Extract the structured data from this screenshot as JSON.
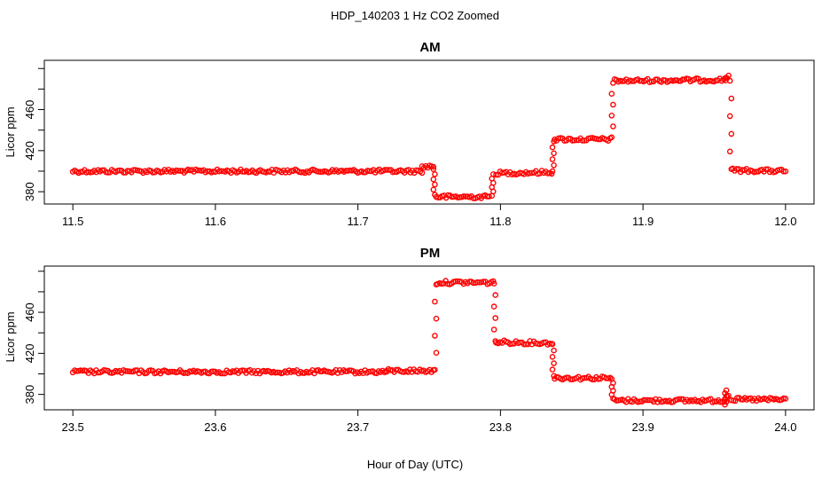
{
  "figure": {
    "title": "HDP_140203  1 Hz CO2 Zoomed",
    "xlabel": "Hour of Day (UTC)"
  },
  "chart_data": [
    {
      "type": "scatter",
      "title": "AM",
      "ylabel": "Licor ppm",
      "xlim": [
        11.48,
        12.02
      ],
      "ylim": [
        368,
        508
      ],
      "xticks": [
        "11.5",
        "11.6",
        "11.7",
        "11.8",
        "11.9",
        "12.0"
      ],
      "yticks": [
        "380",
        "420",
        "460"
      ],
      "marker_color": "#ff0000",
      "segments": [
        {
          "x": [
            11.5,
            11.745
          ],
          "y": [
            400,
            400
          ]
        },
        {
          "x": [
            11.745,
            11.753
          ],
          "y": [
            404,
            405
          ]
        },
        {
          "x": [
            11.755,
            11.792
          ],
          "y": [
            375,
            375
          ]
        },
        {
          "x": [
            11.797,
            11.836
          ],
          "y": [
            398,
            399
          ]
        },
        {
          "x": [
            11.838,
            11.877
          ],
          "y": [
            431,
            431
          ]
        },
        {
          "x": [
            11.88,
            11.958
          ],
          "y": [
            488,
            489
          ]
        },
        {
          "x": [
            11.958,
            11.96
          ],
          "y": [
            491,
            493
          ]
        },
        {
          "x": [
            11.963,
            12.0
          ],
          "y": [
            401,
            400
          ]
        }
      ],
      "transitions": [
        {
          "x": 11.7535,
          "y": [
            402,
            377
          ]
        },
        {
          "x": 11.7945,
          "y": [
            376,
            397
          ]
        },
        {
          "x": 11.837,
          "y": [
            400,
            429
          ]
        },
        {
          "x": 11.8785,
          "y": [
            433,
            486
          ]
        },
        {
          "x": 11.9615,
          "y": [
            488,
            402
          ]
        }
      ]
    },
    {
      "type": "scatter",
      "title": "PM",
      "ylabel": "Licor ppm",
      "xlim": [
        23.48,
        24.02
      ],
      "ylim": [
        365,
        505
      ],
      "xticks": [
        "23.5",
        "23.6",
        "23.7",
        "23.8",
        "23.9",
        "24.0"
      ],
      "yticks": [
        "380",
        "420",
        "460"
      ],
      "marker_color": "#ff0000",
      "segments": [
        {
          "x": [
            23.5,
            23.72
          ],
          "y": [
            402,
            402
          ]
        },
        {
          "x": [
            23.72,
            23.753
          ],
          "y": [
            403,
            403
          ]
        },
        {
          "x": [
            23.756,
            23.795
          ],
          "y": [
            489,
            489
          ]
        },
        {
          "x": [
            23.797,
            23.836
          ],
          "y": [
            431,
            430
          ]
        },
        {
          "x": [
            23.838,
            23.877
          ],
          "y": [
            396,
            396
          ]
        },
        {
          "x": [
            23.88,
            23.957
          ],
          "y": [
            374,
            374
          ]
        },
        {
          "x": [
            23.958,
            23.96
          ],
          "y": [
            376,
            380
          ]
        },
        {
          "x": [
            23.962,
            24.0
          ],
          "y": [
            375,
            375
          ]
        }
      ],
      "transitions": [
        {
          "x": 23.7545,
          "y": [
            404,
            487
          ]
        },
        {
          "x": 23.796,
          "y": [
            488,
            432
          ]
        },
        {
          "x": 23.837,
          "y": [
            429,
            398
          ]
        },
        {
          "x": 23.8785,
          "y": [
            395,
            376
          ]
        },
        {
          "x": 23.958,
          "y": [
            370,
            384
          ]
        }
      ]
    }
  ]
}
